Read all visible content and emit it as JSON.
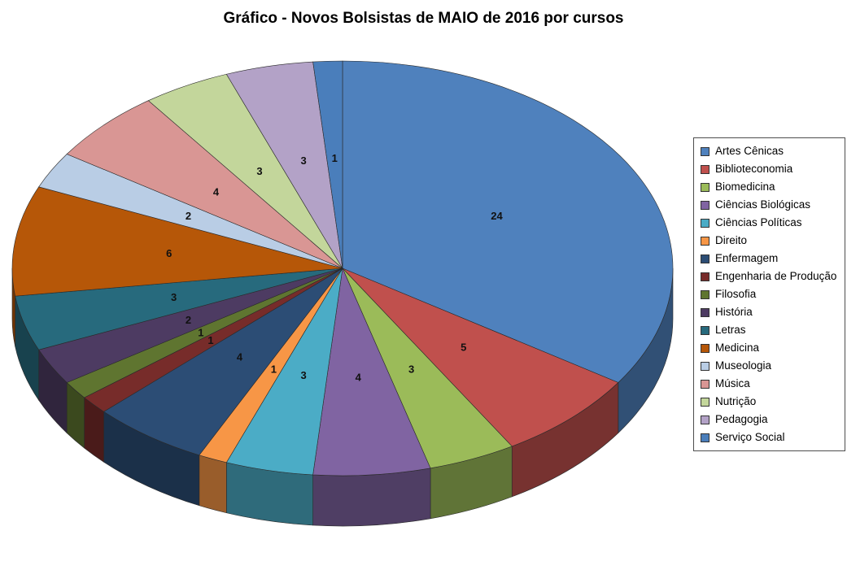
{
  "title": "Gráfico - Novos Bolsistas de MAIO de 2016 por cursos",
  "chart_data": {
    "type": "pie",
    "style": "3d",
    "title": "Gráfico - Novos Bolsistas de MAIO de 2016 por cursos",
    "start_angle_deg": 0,
    "direction": "clockwise",
    "total": 70,
    "legend_position": "right",
    "data_labels": "value",
    "categories": [
      "Artes Cênicas",
      "Biblioteconomia",
      "Biomedicina",
      "Ciências Biológicas",
      "Ciências Políticas",
      "Direito",
      "Enfermagem",
      "Engenharia de Produção",
      "Filosofia",
      "História",
      "Letras",
      "Medicina",
      "Museologia",
      "Música",
      "Nutrição",
      "Pedagogia",
      "Serviço Social"
    ],
    "values": [
      24,
      5,
      3,
      4,
      3,
      1,
      4,
      1,
      1,
      2,
      3,
      6,
      2,
      4,
      3,
      3,
      1
    ],
    "colors": [
      "#4F81BD",
      "#C0504D",
      "#9BBB59",
      "#8064A2",
      "#4BACC6",
      "#F79646",
      "#2C4D75",
      "#772C2A",
      "#5F7530",
      "#4D3B62",
      "#276A7D",
      "#B65708",
      "#B9CDE5",
      "#D99694",
      "#C3D69B",
      "#B3A2C7",
      "#4A7EBB"
    ]
  }
}
